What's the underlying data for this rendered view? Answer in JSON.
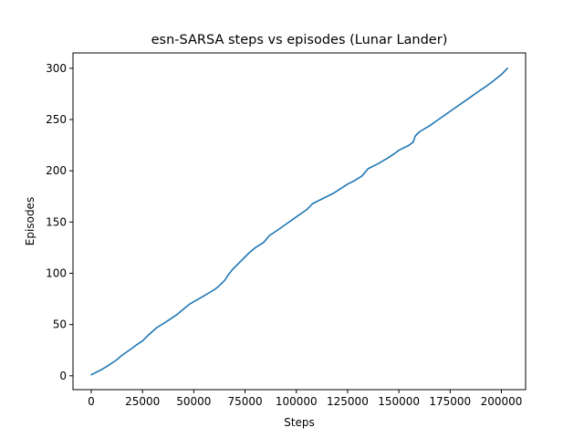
{
  "chart_data": {
    "type": "line",
    "title": "esn-SARSA steps vs episodes (Lunar Lander)",
    "xlabel": "Steps",
    "ylabel": "Episodes",
    "xlim": [
      -8900,
      211800
    ],
    "ylim": [
      -13.5,
      315
    ],
    "xticks": [
      0,
      25000,
      50000,
      75000,
      100000,
      125000,
      150000,
      175000,
      200000
    ],
    "xtick_labels": [
      "0",
      "25000",
      "50000",
      "75000",
      "100000",
      "125000",
      "150000",
      "175000",
      "200000"
    ],
    "yticks": [
      0,
      50,
      100,
      150,
      200,
      250,
      300
    ],
    "ytick_labels": [
      "0",
      "50",
      "100",
      "150",
      "200",
      "250",
      "300"
    ],
    "grid": false,
    "legend": "none",
    "series": [
      {
        "color": "#1f77b4",
        "x": [
          0,
          5000,
          7500,
          12000,
          15000,
          20000,
          22000,
          25000,
          28000,
          32000,
          36000,
          42000,
          45000,
          48000,
          55000,
          60000,
          62000,
          65000,
          67000,
          69000,
          72000,
          77000,
          80000,
          84000,
          87000,
          90000,
          95000,
          100000,
          105000,
          108000,
          112000,
          118000,
          125000,
          128000,
          132000,
          135000,
          140000,
          145000,
          148000,
          150000,
          155000,
          157000,
          158000,
          160000,
          165000,
          170000,
          175000,
          180000,
          185000,
          190000,
          193000,
          195000,
          200000,
          203000
        ],
        "y": [
          1,
          6,
          9,
          15,
          20,
          27,
          30,
          34,
          40,
          47,
          52,
          60,
          65,
          70,
          78,
          84,
          87,
          93,
          99,
          104,
          110,
          120,
          125,
          130,
          137,
          141,
          148,
          155,
          162,
          168,
          172,
          178,
          187,
          190,
          195,
          202,
          207,
          213,
          217,
          220,
          225,
          228,
          234,
          238,
          244,
          251,
          258,
          265,
          272,
          279,
          283,
          286,
          294,
          300
        ]
      }
    ]
  }
}
